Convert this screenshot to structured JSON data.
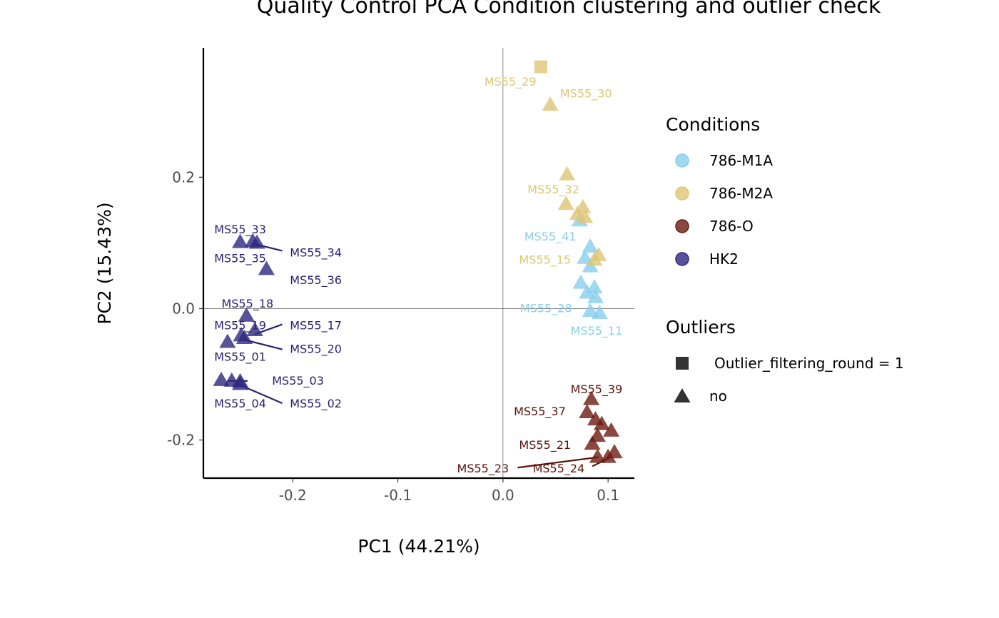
{
  "chart_data": {
    "type": "scatter",
    "title": "Quality Control PCA Condition clustering and outlier check",
    "xlabel": "PC1 (44.21%)",
    "ylabel": "PC2 (15.43%)",
    "xlim": [
      -0.285,
      0.125
    ],
    "ylim": [
      -0.258,
      0.397
    ],
    "x_ticks": [
      {
        "value": -0.2,
        "label": "-0.2"
      },
      {
        "value": -0.1,
        "label": "-0.1"
      },
      {
        "value": 0.0,
        "label": "0.0"
      },
      {
        "value": 0.1,
        "label": "0.1"
      }
    ],
    "y_ticks": [
      {
        "value": -0.2,
        "label": "-0.2"
      },
      {
        "value": 0.0,
        "label": "0.0"
      },
      {
        "value": 0.2,
        "label": "0.2"
      }
    ],
    "reference_lines": {
      "x": 0,
      "y": 0
    },
    "legend": {
      "conditions": {
        "title": "Conditions",
        "items": [
          {
            "label": "786-M1A",
            "color": "#87ceeb"
          },
          {
            "label": "786-M2A",
            "color": "#ddc675"
          },
          {
            "label": "786-O",
            "color": "#6b1a10"
          },
          {
            "label": "HK2",
            "color": "#2e2880"
          }
        ]
      },
      "outliers": {
        "title": "Outliers",
        "items": [
          {
            "label": "Outlier_filtering_round = 1",
            "shape": "square"
          },
          {
            "label": "no",
            "shape": "triangle"
          }
        ]
      }
    },
    "series": [
      {
        "name": "786-M1A",
        "color": "#87ceeb",
        "label_color": "#87ceeb",
        "points": [
          {
            "x": 0.073,
            "y": 0.135,
            "shape": "triangle"
          },
          {
            "x": 0.083,
            "y": 0.095,
            "shape": "triangle"
          },
          {
            "x": 0.078,
            "y": 0.078,
            "shape": "triangle"
          },
          {
            "x": 0.083,
            "y": 0.065,
            "shape": "triangle"
          },
          {
            "x": 0.074,
            "y": 0.04,
            "shape": "triangle"
          },
          {
            "x": 0.087,
            "y": 0.033,
            "shape": "triangle"
          },
          {
            "x": 0.08,
            "y": 0.025,
            "shape": "triangle"
          },
          {
            "x": 0.088,
            "y": 0.018,
            "shape": "triangle"
          },
          {
            "x": 0.083,
            "y": -0.003,
            "shape": "triangle"
          },
          {
            "x": 0.092,
            "y": -0.006,
            "shape": "triangle"
          }
        ],
        "labels": [
          {
            "text": "MS55_41",
            "x": 0.045,
            "y": 0.11
          },
          {
            "text": "MS55_28",
            "x": 0.041,
            "y": 0.001
          },
          {
            "text": "MS55_11",
            "x": 0.089,
            "y": -0.033
          }
        ]
      },
      {
        "name": "786-M2A",
        "color": "#ddc675",
        "label_color": "#ddc675",
        "points": [
          {
            "x": 0.036,
            "y": 0.368,
            "shape": "square"
          },
          {
            "x": 0.045,
            "y": 0.311,
            "shape": "triangle"
          },
          {
            "x": 0.061,
            "y": 0.205,
            "shape": "triangle"
          },
          {
            "x": 0.06,
            "y": 0.16,
            "shape": "triangle"
          },
          {
            "x": 0.076,
            "y": 0.155,
            "shape": "triangle"
          },
          {
            "x": 0.071,
            "y": 0.145,
            "shape": "triangle"
          },
          {
            "x": 0.078,
            "y": 0.14,
            "shape": "triangle"
          },
          {
            "x": 0.091,
            "y": 0.082,
            "shape": "triangle"
          },
          {
            "x": 0.087,
            "y": 0.075,
            "shape": "triangle"
          }
        ],
        "labels": [
          {
            "text": "MS55_29",
            "x": 0.007,
            "y": 0.346
          },
          {
            "text": "MS55_30",
            "x": 0.079,
            "y": 0.328
          },
          {
            "text": "MS55_32",
            "x": 0.048,
            "y": 0.182
          },
          {
            "text": "MS55_15",
            "x": 0.04,
            "y": 0.075
          }
        ]
      },
      {
        "name": "786-O",
        "color": "#6b1a10",
        "label_color": "#5a1208",
        "points": [
          {
            "x": 0.084,
            "y": -0.137,
            "shape": "triangle"
          },
          {
            "x": 0.08,
            "y": -0.157,
            "shape": "triangle"
          },
          {
            "x": 0.088,
            "y": -0.168,
            "shape": "triangle"
          },
          {
            "x": 0.094,
            "y": -0.175,
            "shape": "triangle"
          },
          {
            "x": 0.103,
            "y": -0.185,
            "shape": "triangle"
          },
          {
            "x": 0.09,
            "y": -0.193,
            "shape": "triangle"
          },
          {
            "x": 0.085,
            "y": -0.205,
            "shape": "triangle"
          },
          {
            "x": 0.106,
            "y": -0.218,
            "shape": "triangle"
          },
          {
            "x": 0.09,
            "y": -0.225,
            "shape": "triangle"
          },
          {
            "x": 0.1,
            "y": -0.225,
            "shape": "triangle"
          }
        ],
        "labels": [
          {
            "text": "MS55_39",
            "x": 0.089,
            "y": -0.122
          },
          {
            "text": "MS55_37",
            "x": 0.035,
            "y": -0.156
          },
          {
            "text": "MS55_21",
            "x": 0.04,
            "y": -0.207
          },
          {
            "text": "MS55_23",
            "x": -0.019,
            "y": -0.243
          },
          {
            "text": "MS55_24",
            "x": 0.053,
            "y": -0.243
          }
        ],
        "leaders": [
          {
            "x1": 0.014,
            "y1": -0.242,
            "x2": 0.091,
            "y2": -0.226
          },
          {
            "x1": 0.085,
            "y1": -0.24,
            "x2": 0.101,
            "y2": -0.227
          }
        ]
      },
      {
        "name": "HK2",
        "color": "#2e2880",
        "label_color": "#2a2270",
        "points": [
          {
            "x": -0.25,
            "y": 0.102,
            "shape": "triangle"
          },
          {
            "x": -0.238,
            "y": 0.103,
            "shape": "triangle"
          },
          {
            "x": -0.234,
            "y": 0.101,
            "shape": "triangle"
          },
          {
            "x": -0.225,
            "y": 0.061,
            "shape": "triangle"
          },
          {
            "x": -0.244,
            "y": -0.01,
            "shape": "triangle"
          },
          {
            "x": -0.236,
            "y": -0.032,
            "shape": "triangle"
          },
          {
            "x": -0.249,
            "y": -0.04,
            "shape": "triangle"
          },
          {
            "x": -0.246,
            "y": -0.044,
            "shape": "triangle"
          },
          {
            "x": -0.262,
            "y": -0.05,
            "shape": "triangle"
          },
          {
            "x": -0.268,
            "y": -0.108,
            "shape": "triangle"
          },
          {
            "x": -0.258,
            "y": -0.109,
            "shape": "triangle"
          },
          {
            "x": -0.25,
            "y": -0.11,
            "shape": "triangle"
          },
          {
            "x": -0.25,
            "y": -0.114,
            "shape": "triangle"
          }
        ],
        "labels": [
          {
            "text": "MS55_33",
            "x": -0.25,
            "y": 0.121
          },
          {
            "text": "MS55_34",
            "x": -0.178,
            "y": 0.086
          },
          {
            "text": "MS55_35",
            "x": -0.25,
            "y": 0.077
          },
          {
            "text": "MS55_36",
            "x": -0.178,
            "y": 0.044
          },
          {
            "text": "MS55_18",
            "x": -0.243,
            "y": 0.008
          },
          {
            "text": "MS55_17",
            "x": -0.178,
            "y": -0.025
          },
          {
            "text": "MS55_19",
            "x": -0.25,
            "y": -0.025
          },
          {
            "text": "MS55_20",
            "x": -0.178,
            "y": -0.061
          },
          {
            "text": "MS55_01",
            "x": -0.25,
            "y": -0.073
          },
          {
            "text": "MS55_03",
            "x": -0.195,
            "y": -0.109
          },
          {
            "text": "MS55_04",
            "x": -0.25,
            "y": -0.144
          },
          {
            "text": "MS55_02",
            "x": -0.178,
            "y": -0.144
          }
        ],
        "leaders": [
          {
            "x1": -0.238,
            "y1": 0.099,
            "x2": -0.21,
            "y2": 0.088
          },
          {
            "x1": -0.236,
            "y1": -0.039,
            "x2": -0.21,
            "y2": -0.024
          },
          {
            "x1": -0.247,
            "y1": -0.047,
            "x2": -0.21,
            "y2": -0.062
          },
          {
            "x1": -0.262,
            "y1": -0.11,
            "x2": -0.243,
            "y2": -0.11
          },
          {
            "x1": -0.252,
            "y1": -0.115,
            "x2": -0.21,
            "y2": -0.144
          }
        ]
      }
    ]
  }
}
